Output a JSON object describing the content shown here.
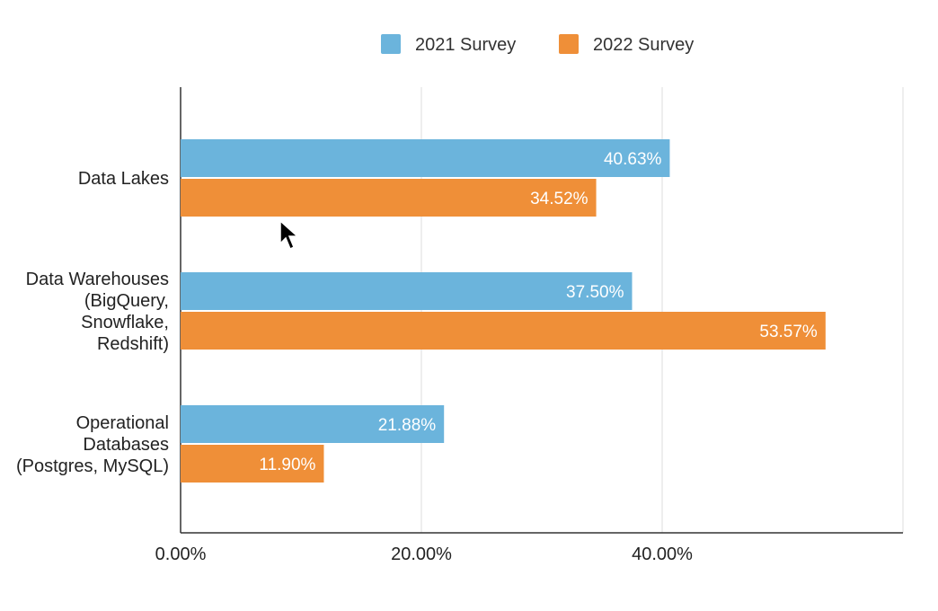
{
  "chart_data": {
    "type": "bar",
    "orientation": "horizontal",
    "title": "",
    "xlabel": "",
    "ylabel": "",
    "categories": [
      [
        "Data Lakes"
      ],
      [
        "Data Warehouses",
        "(BigQuery,",
        "Snowflake,",
        "Redshift)"
      ],
      [
        "Operational",
        "Databases",
        "(Postgres, MySQL)"
      ]
    ],
    "series": [
      {
        "name": "2021 Survey",
        "color": "#6bb4dc",
        "values": [
          40.63,
          37.5,
          21.88
        ],
        "labels": [
          "40.63%",
          "37.50%",
          "21.88%"
        ]
      },
      {
        "name": "2022 Survey",
        "color": "#ef8f38",
        "values": [
          34.52,
          53.57,
          11.9
        ],
        "labels": [
          "34.52%",
          "53.57%",
          "11.90%"
        ]
      }
    ],
    "xlim": [
      0,
      60
    ],
    "xticks": [
      0,
      20,
      40
    ],
    "xtick_labels": [
      "0.00%",
      "20.00%",
      "40.00%"
    ],
    "grid": true,
    "legend_position": "top"
  }
}
